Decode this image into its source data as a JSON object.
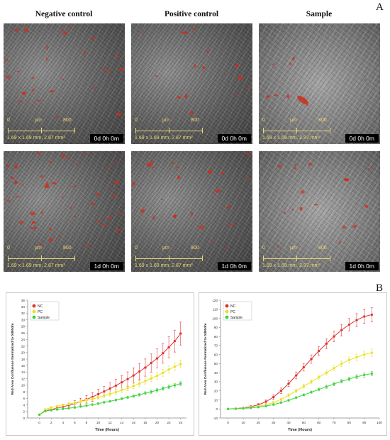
{
  "panel_a": {
    "letter": "A",
    "columns": [
      "Negative control",
      "Positive control",
      "Sample"
    ],
    "scale_bar": {
      "start": "0",
      "unit": "µm",
      "end": "800",
      "dimensions": "1.69 x 1.69 mm, 2.87 mm²"
    },
    "timestamps": [
      "0d 0h 0m",
      "1d 0h 0m"
    ]
  },
  "panel_b": {
    "letter": "B"
  },
  "chart_data": [
    {
      "type": "line",
      "xlabel": "Time (Hours)",
      "ylabel": "Red Area Confluence Normalized to 0d00dm",
      "xlim": [
        -2,
        25
      ],
      "ylim": [
        0,
        36
      ],
      "xticks": [
        0,
        2,
        4,
        6,
        8,
        10,
        12,
        14,
        16,
        18,
        20,
        22,
        24
      ],
      "yticks": [
        0,
        2,
        4,
        6,
        8,
        10,
        12,
        14,
        16,
        18,
        20,
        22,
        24,
        26,
        28,
        30,
        32,
        34,
        36
      ],
      "legend_position": "top-left",
      "grid": false,
      "x": [
        0,
        1,
        2,
        3,
        4,
        5,
        6,
        7,
        8,
        9,
        10,
        11,
        12,
        13,
        14,
        15,
        16,
        17,
        18,
        19,
        20,
        21,
        22,
        23,
        24
      ],
      "series": [
        {
          "name": "NC",
          "color": "#e03030",
          "values": [
            1,
            2.2,
            2.6,
            3.0,
            3.4,
            3.9,
            4.4,
            5.0,
            5.7,
            6.4,
            7.3,
            8.1,
            9.0,
            9.9,
            10.9,
            11.9,
            13.0,
            14.2,
            15.4,
            16.8,
            18.2,
            19.8,
            21.6,
            23.5,
            25.8
          ]
        },
        {
          "name": "PC",
          "color": "#e8e020",
          "values": [
            1,
            2.6,
            3.2,
            3.6,
            4.0,
            4.3,
            4.6,
            5.0,
            5.4,
            5.8,
            6.3,
            6.8,
            7.3,
            7.9,
            8.5,
            9.1,
            9.8,
            10.5,
            11.3,
            12.1,
            12.9,
            13.8,
            14.8,
            15.7,
            16.5
          ]
        },
        {
          "name": "Sample",
          "color": "#3cd23c",
          "values": [
            1,
            2.1,
            2.4,
            2.6,
            2.8,
            3.0,
            3.2,
            3.5,
            3.8,
            4.1,
            4.4,
            4.8,
            5.1,
            5.5,
            5.9,
            6.3,
            6.7,
            7.1,
            7.6,
            8.0,
            8.5,
            9.0,
            9.5,
            10.0,
            10.5
          ]
        }
      ],
      "error_bars": {
        "NC": 3.5,
        "PC": 1.2,
        "Sample": 0.6
      }
    },
    {
      "type": "line",
      "xlabel": "Time (Hours)",
      "ylabel": "Red Area Confluence Normalized to 0d00dm",
      "xlim": [
        -5,
        100
      ],
      "ylim": [
        -10,
        120
      ],
      "xticks": [
        0,
        10,
        20,
        30,
        40,
        50,
        60,
        70,
        80,
        90,
        100
      ],
      "yticks": [
        -10,
        0,
        10,
        20,
        30,
        40,
        50,
        60,
        70,
        80,
        90,
        100,
        110,
        120
      ],
      "legend_position": "top-left",
      "grid": false,
      "x": [
        0,
        5,
        10,
        15,
        20,
        25,
        30,
        35,
        40,
        45,
        50,
        55,
        60,
        65,
        70,
        75,
        80,
        85,
        90,
        95
      ],
      "series": [
        {
          "name": "NC",
          "color": "#e03030",
          "values": [
            0,
            0.5,
            1.2,
            2.5,
            4.5,
            8,
            13,
            20,
            28,
            37,
            46,
            55,
            64,
            72,
            80,
            87,
            93,
            98,
            102,
            104
          ]
        },
        {
          "name": "PC",
          "color": "#e8e020",
          "values": [
            0,
            0.3,
            0.8,
            1.6,
            2.8,
            4.5,
            7,
            10.5,
            15,
            20,
            25,
            30,
            35,
            40,
            45,
            50,
            54,
            57,
            60,
            62
          ]
        },
        {
          "name": "Sample",
          "color": "#3cd23c",
          "values": [
            0,
            0.2,
            0.6,
            1.2,
            2.0,
            3.2,
            4.8,
            7,
            9.5,
            12.5,
            15.5,
            18.5,
            21.5,
            24.5,
            27.5,
            30.5,
            33,
            35.5,
            37.5,
            39
          ]
        }
      ],
      "error_bars": {
        "NC": 8,
        "PC": 4,
        "Sample": 2.5
      }
    }
  ]
}
